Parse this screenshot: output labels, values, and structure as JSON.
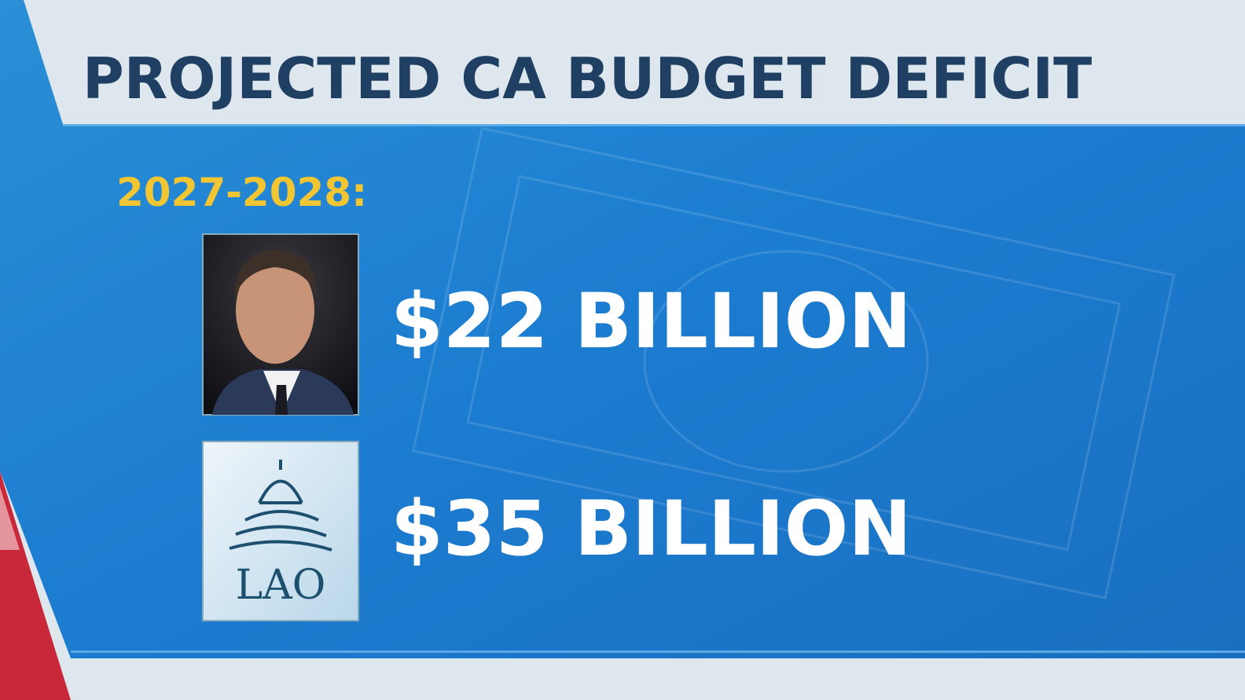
{
  "header": {
    "title": "PROJECTED CA BUDGET DEFICIT"
  },
  "period": "2027-2028:",
  "items": [
    {
      "amount": "$22 BILLION"
    },
    {
      "logo_text": "LAO",
      "amount": "$35 BILLION"
    }
  ]
}
